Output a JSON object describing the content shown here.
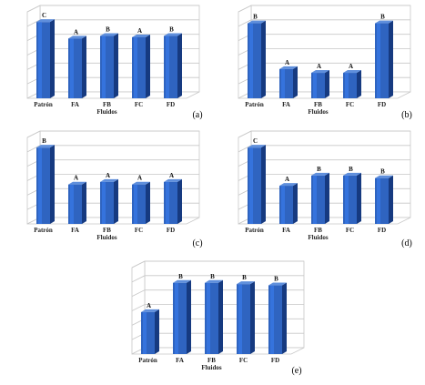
{
  "colors": {
    "bar_front": "#2f64c0",
    "bar_side": "#163a80",
    "bar_top": "#5f8fdc",
    "grid": "#c8c8c8"
  },
  "chart_data": [
    {
      "panel_label": "(a)",
      "type": "bar",
      "xlabel": "Fluidos",
      "categories": [
        "Patrón",
        "FA",
        "FB",
        "FC",
        "FD"
      ],
      "values": [
        6,
        4.7,
        4.9,
        4.8,
        4.9
      ],
      "bar_labels": [
        "C",
        "A",
        "B",
        "A",
        "B"
      ],
      "ylim": [
        0,
        6.8
      ],
      "grid": true
    },
    {
      "panel_label": "(b)",
      "type": "bar",
      "xlabel": "Fluidos",
      "categories": [
        "Patrón",
        "FA",
        "FB",
        "FC",
        "FD"
      ],
      "values": [
        5.9,
        2.3,
        2.0,
        2.0,
        5.9
      ],
      "bar_labels": [
        "B",
        "A",
        "A",
        "A",
        "B"
      ],
      "ylim": [
        0,
        6.8
      ],
      "grid": true
    },
    {
      "panel_label": "(c)",
      "type": "bar",
      "xlabel": "Fluidos",
      "categories": [
        "Patrón",
        "FA",
        "FB",
        "FC",
        "FD"
      ],
      "values": [
        6.0,
        3.1,
        3.3,
        3.1,
        3.3
      ],
      "bar_labels": [
        "B",
        "A",
        "A",
        "A",
        "A"
      ],
      "ylim": [
        0,
        6.8
      ],
      "grid": true
    },
    {
      "panel_label": "(d)",
      "type": "bar",
      "xlabel": "Fluidos",
      "categories": [
        "Patrón",
        "FA",
        "FB",
        "FC",
        "FD"
      ],
      "values": [
        6.0,
        3.0,
        3.8,
        3.8,
        3.6
      ],
      "bar_labels": [
        "C",
        "A",
        "B",
        "B",
        "B"
      ],
      "ylim": [
        0,
        6.8
      ],
      "grid": true
    },
    {
      "panel_label": "(e)",
      "type": "bar",
      "xlabel": "Fluidos",
      "categories": [
        "Patrón",
        "FA",
        "FB",
        "FC",
        "FD"
      ],
      "values": [
        3.3,
        5.6,
        5.6,
        5.5,
        5.4
      ],
      "bar_labels": [
        "A",
        "B",
        "B",
        "B",
        "B"
      ],
      "ylim": [
        0,
        6.8
      ],
      "grid": true
    }
  ]
}
